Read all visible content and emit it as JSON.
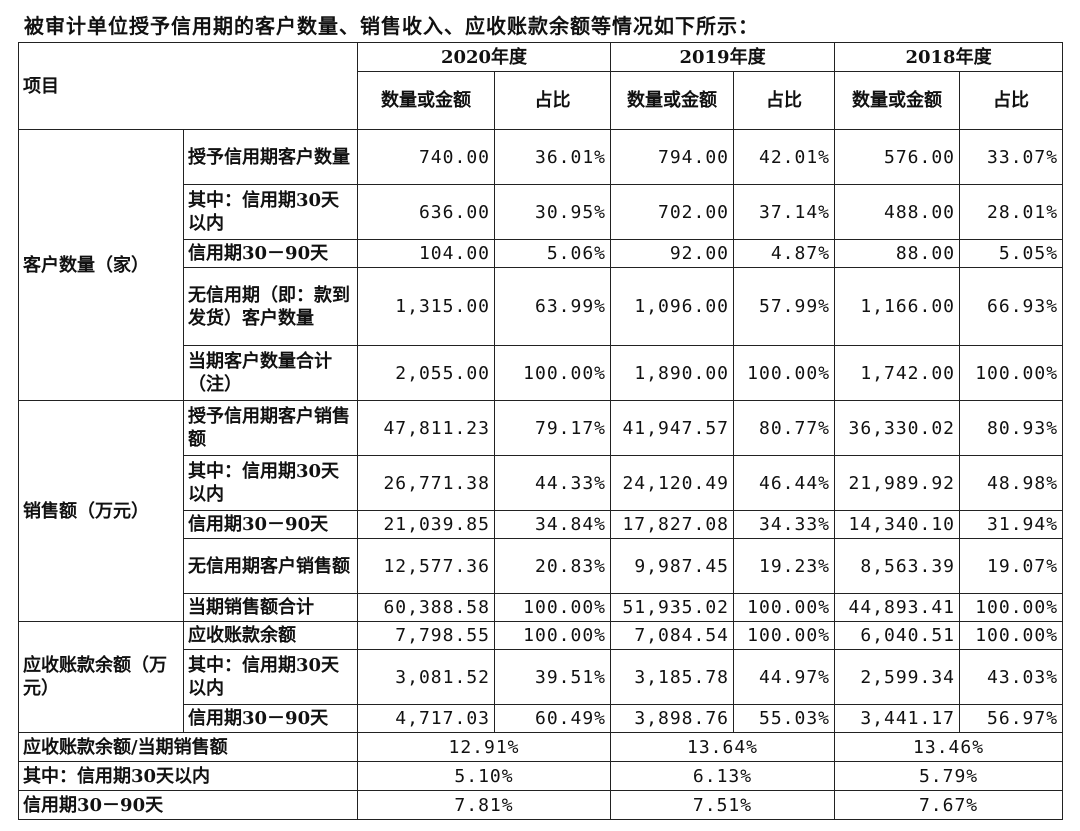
{
  "intro": "被审计单位授予信用期的客户数量、销售收入、应收账款余额等情况如下所示：",
  "header": {
    "item_label": "项目",
    "years": [
      "2020年度",
      "2019年度",
      "2018年度"
    ],
    "amount_label": "数量或金额",
    "ratio_label": "占比"
  },
  "groups": [
    {
      "label": "客户数量（家）",
      "rows": [
        {
          "label": "授予信用期客户数量",
          "values": [
            "740.00",
            "36.01%",
            "794.00",
            "42.01%",
            "576.00",
            "33.07%"
          ]
        },
        {
          "label": "其中：信用期30天以内",
          "values": [
            "636.00",
            "30.95%",
            "702.00",
            "37.14%",
            "488.00",
            "28.01%"
          ]
        },
        {
          "label": "信用期30－90天",
          "values": [
            "104.00",
            "5.06%",
            "92.00",
            "4.87%",
            "88.00",
            "5.05%"
          ]
        },
        {
          "label": "无信用期（即：款到发货）客户数量",
          "values": [
            "1,315.00",
            "63.99%",
            "1,096.00",
            "57.99%",
            "1,166.00",
            "66.93%"
          ]
        },
        {
          "label": "当期客户数量合计（注）",
          "values": [
            "2,055.00",
            "100.00%",
            "1,890.00",
            "100.00%",
            "1,742.00",
            "100.00%"
          ]
        }
      ]
    },
    {
      "label": "销售额（万元）",
      "rows": [
        {
          "label": "授予信用期客户销售额",
          "values": [
            "47,811.23",
            "79.17%",
            "41,947.57",
            "80.77%",
            "36,330.02",
            "80.93%"
          ]
        },
        {
          "label": "其中：信用期30天以内",
          "values": [
            "26,771.38",
            "44.33%",
            "24,120.49",
            "46.44%",
            "21,989.92",
            "48.98%"
          ]
        },
        {
          "label": "信用期30－90天",
          "values": [
            "21,039.85",
            "34.84%",
            "17,827.08",
            "34.33%",
            "14,340.10",
            "31.94%"
          ]
        },
        {
          "label": "无信用期客户销售额",
          "values": [
            "12,577.36",
            "20.83%",
            "9,987.45",
            "19.23%",
            "8,563.39",
            "19.07%"
          ]
        },
        {
          "label": "当期销售额合计",
          "values": [
            "60,388.58",
            "100.00%",
            "51,935.02",
            "100.00%",
            "44,893.41",
            "100.00%"
          ]
        }
      ]
    },
    {
      "label": "应收账款余额（万元）",
      "rows": [
        {
          "label": "应收账款余额",
          "values": [
            "7,798.55",
            "100.00%",
            "7,084.54",
            "100.00%",
            "6,040.51",
            "100.00%"
          ]
        },
        {
          "label": "其中：信用期30天以内",
          "values": [
            "3,081.52",
            "39.51%",
            "3,185.78",
            "44.97%",
            "2,599.34",
            "43.03%"
          ]
        },
        {
          "label": "信用期30－90天",
          "values": [
            "4,717.03",
            "60.49%",
            "3,898.76",
            "55.03%",
            "3,441.17",
            "56.97%"
          ]
        }
      ]
    }
  ],
  "ratio_rows": [
    {
      "label": "应收账款余额/当期销售额",
      "values": [
        "12.91%",
        "13.64%",
        "13.46%"
      ]
    },
    {
      "label": "其中：信用期30天以内",
      "values": [
        "5.10%",
        "6.13%",
        "5.79%"
      ]
    },
    {
      "label": "信用期30－90天",
      "values": [
        "7.81%",
        "7.51%",
        "7.67%"
      ]
    }
  ]
}
